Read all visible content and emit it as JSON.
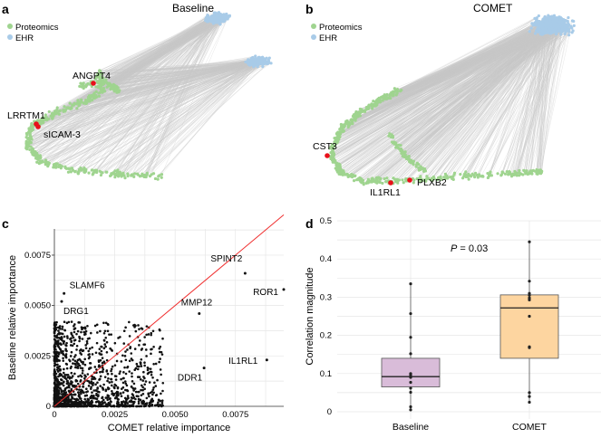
{
  "panel_a": {
    "letter": "a",
    "title": "Baseline",
    "legend": [
      {
        "label": "Proteomics",
        "color": "#9fd48f"
      },
      {
        "label": "EHR",
        "color": "#a8cbe8"
      }
    ],
    "labels": [
      "ANGPT4",
      "LRRTM1",
      "sICAM-3"
    ]
  },
  "panel_b": {
    "letter": "b",
    "title": "COMET",
    "legend": [
      {
        "label": "Proteomics",
        "color": "#9fd48f"
      },
      {
        "label": "EHR",
        "color": "#a8cbe8"
      }
    ],
    "labels": [
      "CST3",
      "IL1RL1",
      "PLXB2"
    ]
  },
  "colors": {
    "proteomics": "#9fd48f",
    "ehr": "#a8cbe8",
    "highlight": "#e8101a",
    "edge": "#c8c8c8",
    "diag": "#f03030",
    "baseline_box": "#d9bcd9",
    "comet_box": "#fdd5a0"
  },
  "chart_data": [
    {
      "panel": "c",
      "type": "scatter",
      "xlabel": "COMET relative importance",
      "ylabel": "Baseline relative importance",
      "xlim": [
        0,
        0.0095
      ],
      "ylim": [
        0,
        0.0088
      ],
      "xticks": [
        "0",
        "0.0025",
        "0.0050",
        "0.0075"
      ],
      "yticks": [
        "0",
        "0.0025",
        "0.0050",
        "0.0075"
      ],
      "reference_line": "y = x",
      "grid": true,
      "labeled_points": [
        {
          "label": "SLAMF6",
          "x": 0.0004,
          "y": 0.0056
        },
        {
          "label": "DRG1",
          "x": 0.0003,
          "y": 0.0052
        },
        {
          "label": "SPINT2",
          "x": 0.0079,
          "y": 0.0066
        },
        {
          "label": "MMP12",
          "x": 0.006,
          "y": 0.0046
        },
        {
          "label": "ROR1",
          "x": 0.0095,
          "y": 0.0058
        },
        {
          "label": "IL1RL1",
          "x": 0.0088,
          "y": 0.0023
        },
        {
          "label": "DDR1",
          "x": 0.0062,
          "y": 0.0019
        }
      ]
    },
    {
      "panel": "d",
      "type": "box",
      "ylabel": "Correlation magnitude",
      "ylim": [
        0,
        0.5
      ],
      "yticks": [
        "0",
        "0.1",
        "0.2",
        "0.3",
        "0.4",
        "0.5"
      ],
      "annotation": {
        "p_label": "P",
        "p_text": " = 0.03"
      },
      "categories": [
        "Baseline",
        "COMET"
      ],
      "series": [
        {
          "name": "Baseline",
          "q1": 0.065,
          "median": 0.092,
          "q3": 0.14,
          "points": [
            0.335,
            0.257,
            0.195,
            0.152,
            0.1,
            0.097,
            0.092,
            0.09,
            0.077,
            0.062,
            0.051,
            0.013,
            0.005
          ]
        },
        {
          "name": "COMET",
          "q1": 0.14,
          "median": 0.272,
          "q3": 0.306,
          "points": [
            0.445,
            0.342,
            0.31,
            0.305,
            0.298,
            0.293,
            0.25,
            0.17,
            0.168,
            0.05,
            0.04,
            0.025
          ]
        }
      ]
    }
  ],
  "panel_c_letter": "c",
  "panel_d_letter": "d"
}
